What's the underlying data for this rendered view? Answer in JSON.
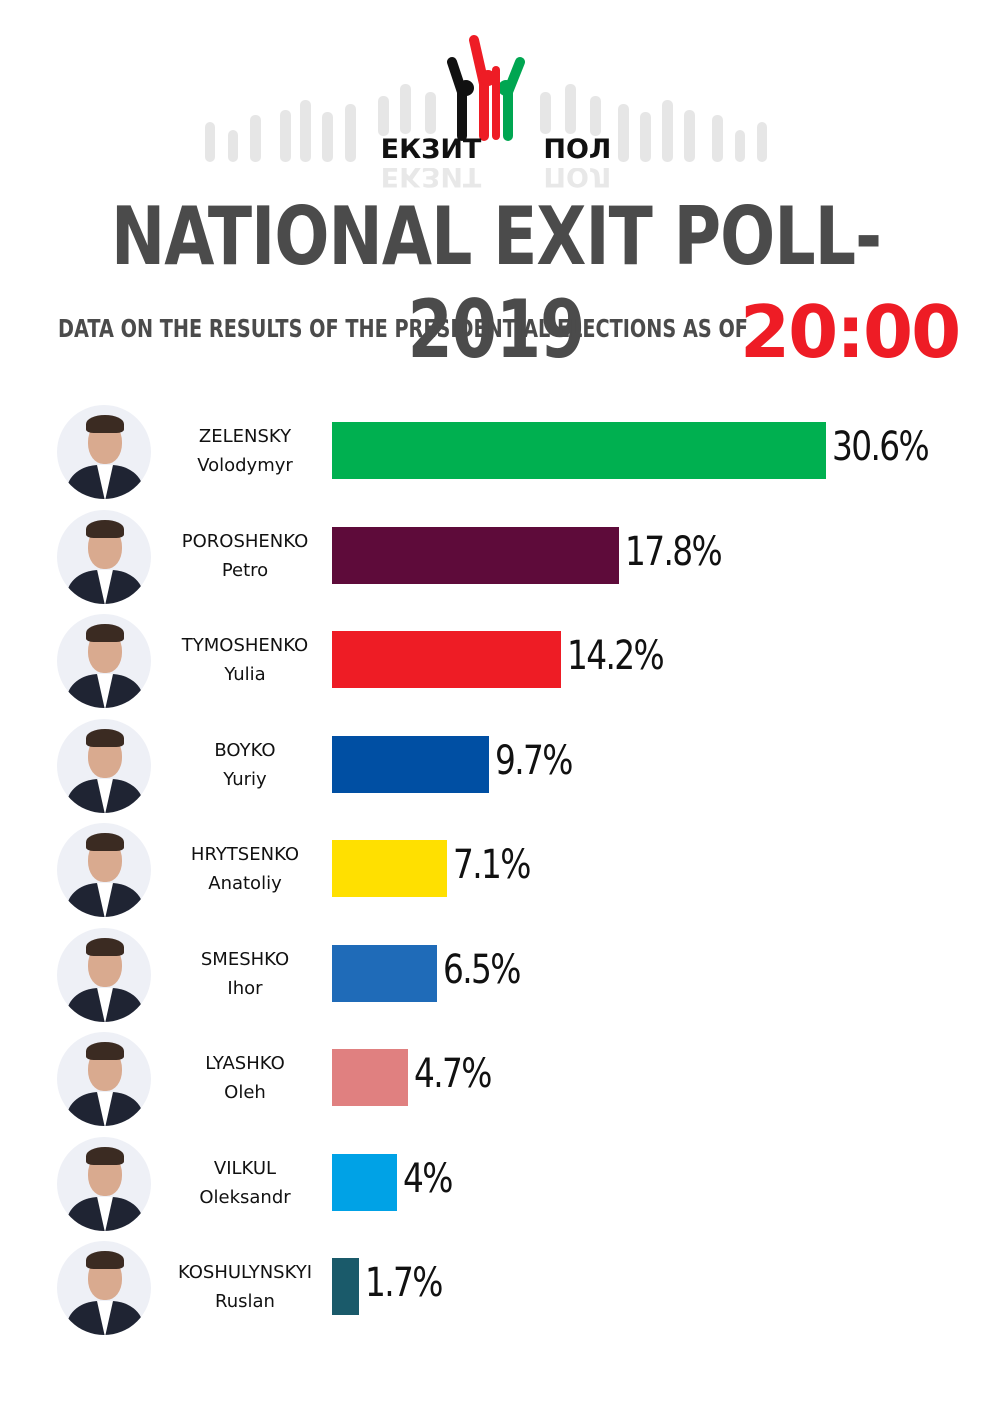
{
  "logo": {
    "left_word": "ЕКЗИТ",
    "right_word": "ПОЛ"
  },
  "header": {
    "title": "NATIONAL EXIT POLL-2019",
    "subtitle": "DATA ON THE RESULTS OF THE PRESIDENTIAL ELECTIONS AS OF",
    "time": "20:00"
  },
  "chart_data": {
    "type": "bar",
    "orientation": "horizontal",
    "title": "NATIONAL EXIT POLL-2019",
    "categories": [
      {
        "surname": "ZELENSKY",
        "first_name": "Volodymyr"
      },
      {
        "surname": "POROSHENKO",
        "first_name": "Petro"
      },
      {
        "surname": "TYMOSHENKO",
        "first_name": "Yulia"
      },
      {
        "surname": "BOYKO",
        "first_name": "Yuriy"
      },
      {
        "surname": "HRYTSENKO",
        "first_name": "Anatoliy"
      },
      {
        "surname": "SMESHKO",
        "first_name": "Ihor"
      },
      {
        "surname": "LYASHKO",
        "first_name": "Oleh"
      },
      {
        "surname": "VILKUL",
        "first_name": "Oleksandr"
      },
      {
        "surname": "KOSHULYNSKYI",
        "first_name": "Ruslan"
      }
    ],
    "values": [
      30.6,
      17.8,
      14.2,
      9.7,
      7.1,
      6.5,
      4.7,
      4,
      1.7
    ],
    "labels": [
      "30.6%",
      "17.8%",
      "14.2%",
      "9.7%",
      "7.1%",
      "6.5%",
      "4.7%",
      "4%",
      "1.7%"
    ],
    "colors": [
      "#00b050",
      "#5e0b3a",
      "#ee1c25",
      "#004fa3",
      "#ffe000",
      "#1f6bb8",
      "#e08080",
      "#00a2e6",
      "#1a5a6a"
    ],
    "xlim": [
      0,
      30.6
    ],
    "grid": false,
    "legend": "none"
  }
}
